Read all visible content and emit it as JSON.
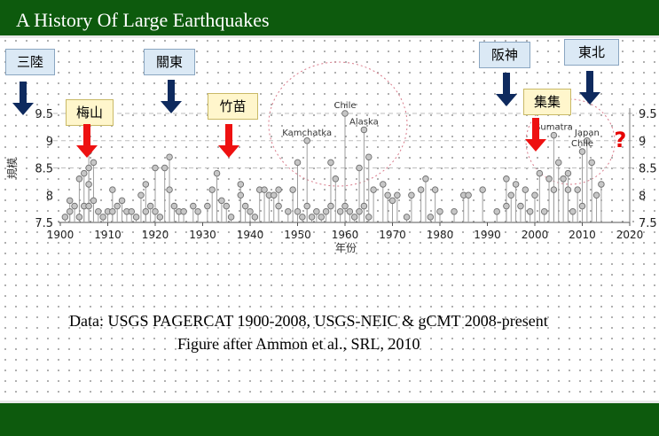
{
  "slide": {
    "title": "A History Of Large Earthquakes",
    "caption_line1": "Data: USGS PAGERCAT 1900-2008, USGS-NEIC & gCMT 2008-present",
    "caption_line2": "Figure after Ammon et al., SRL, 2010",
    "colors": {
      "header": "#0d5a0d",
      "blue_arrow": "#0e2a5e",
      "red_arrow": "#ee1111"
    }
  },
  "labels": [
    {
      "id": "sanriku",
      "text": "三陸",
      "style": "blue",
      "arrow": "blue",
      "year": 1896
    },
    {
      "id": "meishan",
      "text": "梅山",
      "style": "yellow",
      "arrow": "red",
      "year": 1906
    },
    {
      "id": "kanto",
      "text": "關東",
      "style": "blue",
      "arrow": "blue",
      "year": 1923
    },
    {
      "id": "zhumiao",
      "text": "竹苗",
      "style": "yellow",
      "arrow": "red",
      "year": 1935
    },
    {
      "id": "hanshin",
      "text": "阪神",
      "style": "blue",
      "arrow": "blue",
      "year": 1995
    },
    {
      "id": "jiji",
      "text": "集集",
      "style": "yellow",
      "arrow": "red",
      "year": 1999
    },
    {
      "id": "tohoku",
      "text": "東北",
      "style": "blue",
      "arrow": "blue",
      "year": 2011
    }
  ],
  "chart_data": {
    "type": "scatter",
    "xlabel": "年份",
    "ylabel": "規模",
    "xlim": [
      1900,
      2020
    ],
    "ylim": [
      7.5,
      9.5
    ],
    "x_ticks": [
      1900,
      1910,
      1920,
      1930,
      1940,
      1950,
      1960,
      1970,
      1980,
      1990,
      2000,
      2010,
      2020
    ],
    "y_ticks": [
      7.5,
      8,
      8.5,
      9,
      9.5
    ],
    "gridlines_y": [
      8.5,
      9,
      9.5
    ],
    "question_mark": "?",
    "highlight_circles": [
      "1952-1965",
      "2004-2011"
    ],
    "annotations": [
      {
        "text": "Chile",
        "x": 1960,
        "y": 9.5
      },
      {
        "text": "Alaska",
        "x": 1964,
        "y": 9.2
      },
      {
        "text": "Kamchatka",
        "x": 1952,
        "y": 9.0
      },
      {
        "text": "Sumatra",
        "x": 2004,
        "y": 9.1
      },
      {
        "text": "Chile",
        "x": 2010,
        "y": 8.8
      },
      {
        "text": "Japan",
        "x": 2011,
        "y": 9.0
      }
    ],
    "events": [
      [
        1901,
        7.6
      ],
      [
        1902,
        7.7
      ],
      [
        1902,
        7.9
      ],
      [
        1903,
        7.8
      ],
      [
        1904,
        8.3
      ],
      [
        1904,
        7.6
      ],
      [
        1905,
        8.4
      ],
      [
        1905,
        7.8
      ],
      [
        1906,
        8.8
      ],
      [
        1906,
        8.5
      ],
      [
        1906,
        8.2
      ],
      [
        1906,
        7.8
      ],
      [
        1907,
        8.6
      ],
      [
        1907,
        7.9
      ],
      [
        1908,
        7.7
      ],
      [
        1909,
        7.6
      ],
      [
        1910,
        7.7
      ],
      [
        1911,
        8.1
      ],
      [
        1911,
        7.7
      ],
      [
        1912,
        7.8
      ],
      [
        1913,
        7.9
      ],
      [
        1914,
        7.7
      ],
      [
        1915,
        7.7
      ],
      [
        1916,
        7.6
      ],
      [
        1917,
        8.0
      ],
      [
        1918,
        8.2
      ],
      [
        1918,
        7.7
      ],
      [
        1919,
        7.8
      ],
      [
        1920,
        8.5
      ],
      [
        1920,
        7.7
      ],
      [
        1921,
        7.6
      ],
      [
        1922,
        8.5
      ],
      [
        1923,
        8.7
      ],
      [
        1923,
        8.1
      ],
      [
        1924,
        7.8
      ],
      [
        1925,
        7.7
      ],
      [
        1926,
        7.7
      ],
      [
        1928,
        7.8
      ],
      [
        1929,
        7.7
      ],
      [
        1931,
        7.8
      ],
      [
        1932,
        8.1
      ],
      [
        1933,
        8.4
      ],
      [
        1934,
        7.9
      ],
      [
        1935,
        7.8
      ],
      [
        1936,
        7.6
      ],
      [
        1938,
        8.2
      ],
      [
        1938,
        8.0
      ],
      [
        1939,
        7.8
      ],
      [
        1940,
        7.7
      ],
      [
        1941,
        7.6
      ],
      [
        1942,
        8.1
      ],
      [
        1943,
        8.1
      ],
      [
        1944,
        8.0
      ],
      [
        1945,
        8.0
      ],
      [
        1946,
        8.1
      ],
      [
        1946,
        7.8
      ],
      [
        1948,
        7.7
      ],
      [
        1949,
        8.1
      ],
      [
        1950,
        8.6
      ],
      [
        1950,
        7.7
      ],
      [
        1951,
        7.6
      ],
      [
        1952,
        9.0
      ],
      [
        1952,
        7.8
      ],
      [
        1953,
        7.6
      ],
      [
        1954,
        7.7
      ],
      [
        1955,
        7.6
      ],
      [
        1956,
        7.7
      ],
      [
        1957,
        8.6
      ],
      [
        1957,
        7.8
      ],
      [
        1958,
        8.3
      ],
      [
        1959,
        7.7
      ],
      [
        1960,
        9.5
      ],
      [
        1960,
        7.8
      ],
      [
        1961,
        7.7
      ],
      [
        1962,
        7.6
      ],
      [
        1963,
        8.5
      ],
      [
        1963,
        7.7
      ],
      [
        1964,
        9.2
      ],
      [
        1964,
        7.8
      ],
      [
        1965,
        8.7
      ],
      [
        1965,
        7.6
      ],
      [
        1966,
        8.1
      ],
      [
        1968,
        8.2
      ],
      [
        1969,
        8.0
      ],
      [
        1970,
        7.9
      ],
      [
        1971,
        8.0
      ],
      [
        1973,
        7.6
      ],
      [
        1974,
        8.0
      ],
      [
        1976,
        8.1
      ],
      [
        1977,
        8.3
      ],
      [
        1978,
        7.6
      ],
      [
        1979,
        8.1
      ],
      [
        1980,
        7.7
      ],
      [
        1983,
        7.7
      ],
      [
        1985,
        8.0
      ],
      [
        1986,
        8.0
      ],
      [
        1989,
        8.1
      ],
      [
        1992,
        7.7
      ],
      [
        1994,
        8.3
      ],
      [
        1994,
        7.8
      ],
      [
        1995,
        8.0
      ],
      [
        1996,
        8.2
      ],
      [
        1997,
        7.8
      ],
      [
        1998,
        8.1
      ],
      [
        1999,
        7.7
      ],
      [
        2000,
        8.0
      ],
      [
        2001,
        8.4
      ],
      [
        2002,
        7.7
      ],
      [
        2003,
        8.3
      ],
      [
        2004,
        9.1
      ],
      [
        2004,
        8.1
      ],
      [
        2005,
        8.6
      ],
      [
        2006,
        8.3
      ],
      [
        2007,
        8.4
      ],
      [
        2007,
        8.1
      ],
      [
        2008,
        7.7
      ],
      [
        2009,
        8.1
      ],
      [
        2010,
        8.8
      ],
      [
        2010,
        7.8
      ],
      [
        2011,
        9.0
      ],
      [
        2012,
        8.6
      ],
      [
        2013,
        8.0
      ],
      [
        2014,
        8.2
      ]
    ]
  }
}
